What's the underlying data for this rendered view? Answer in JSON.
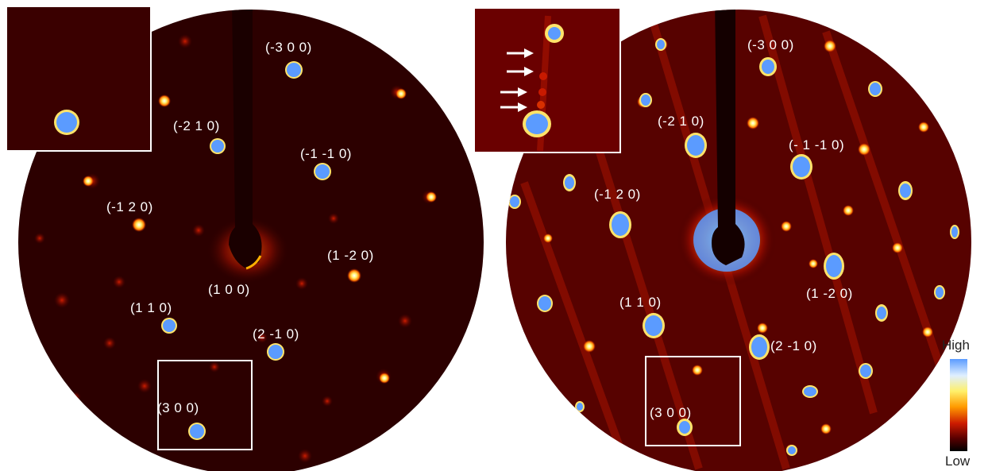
{
  "panels": {
    "left": {
      "labels": [
        "(-3 0 0)",
        "(-2 1 0)",
        "(-1 -1 0)",
        "(-1 2 0)",
        "(1 -2 0)",
        "(1 0 0)",
        "(1 1 0)",
        "(2 -1 0)",
        "(3 0 0)"
      ]
    },
    "right": {
      "labels": [
        "(-3 0 0)",
        "(-2 1 0)",
        "(- 1 -1 0)",
        "(-1 2 0)",
        "(1 -2 0)",
        "(1 1 0)",
        "(2 -1 0)",
        "(3 0 0)"
      ]
    }
  },
  "colorbar": {
    "high_label": "High",
    "low_label": "Low",
    "colors": [
      "#5b9bff",
      "#dfefff",
      "#fff06a",
      "#ff9a00",
      "#cc1a00",
      "#5a0000",
      "#000000"
    ]
  },
  "inset_arrow_count": 4
}
